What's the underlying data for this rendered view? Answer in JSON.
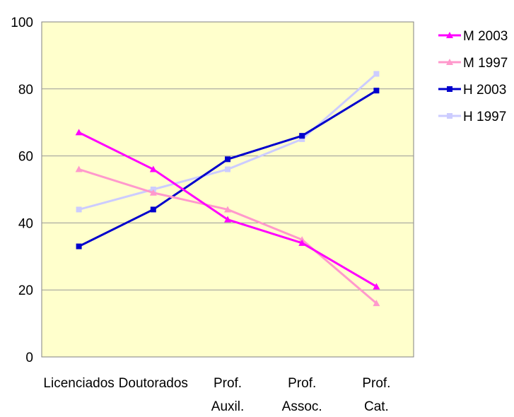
{
  "chart_data": {
    "type": "line",
    "categories": [
      [
        "Licenciados"
      ],
      [
        "Doutorados"
      ],
      [
        "Prof.",
        "Auxil."
      ],
      [
        "Prof.",
        "Assoc."
      ],
      [
        "Prof.",
        "Cat."
      ]
    ],
    "ylim": [
      0,
      100
    ],
    "yticks": [
      "0",
      "20",
      "40",
      "60",
      "80",
      "100"
    ],
    "grid": true,
    "legend_position": "right",
    "plot_background": "#ffffcc",
    "gridline_color": "#999999",
    "series": [
      {
        "name": "M 2003",
        "values": [
          67,
          56,
          41,
          34,
          21
        ],
        "color": "#ff00ff",
        "marker": "triangle"
      },
      {
        "name": "M 1997",
        "values": [
          56,
          49,
          44,
          35,
          16
        ],
        "color": "#ff99cc",
        "marker": "triangle"
      },
      {
        "name": "H 2003",
        "values": [
          33,
          44,
          59,
          66,
          79.5
        ],
        "color": "#0000cc",
        "marker": "square"
      },
      {
        "name": "H 1997",
        "values": [
          44,
          50,
          56,
          65,
          84.5
        ],
        "color": "#ccccff",
        "marker": "square"
      }
    ]
  }
}
